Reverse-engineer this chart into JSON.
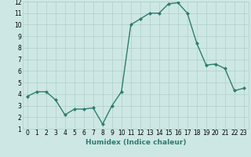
{
  "x": [
    0,
    1,
    2,
    3,
    4,
    5,
    6,
    7,
    8,
    9,
    10,
    11,
    12,
    13,
    14,
    15,
    16,
    17,
    18,
    19,
    20,
    21,
    22,
    23
  ],
  "y": [
    3.8,
    4.2,
    4.2,
    3.5,
    2.2,
    2.7,
    2.7,
    2.8,
    1.4,
    3.0,
    4.2,
    10.0,
    10.5,
    11.0,
    11.0,
    11.8,
    11.9,
    11.0,
    8.4,
    6.5,
    6.6,
    6.2,
    4.3,
    4.5
  ],
  "line_color": "#2e7d6e",
  "marker": "D",
  "marker_size": 2.0,
  "bg_color": "#cde8e4",
  "grid_color": "#b0cfca",
  "xlabel": "Humidex (Indice chaleur)",
  "xlim": [
    -0.5,
    23.5
  ],
  "ylim": [
    1,
    12
  ],
  "yticks": [
    1,
    2,
    3,
    4,
    5,
    6,
    7,
    8,
    9,
    10,
    11,
    12
  ],
  "xticks": [
    0,
    1,
    2,
    3,
    4,
    5,
    6,
    7,
    8,
    9,
    10,
    11,
    12,
    13,
    14,
    15,
    16,
    17,
    18,
    19,
    20,
    21,
    22,
    23
  ],
  "xlabel_fontsize": 6.5,
  "tick_fontsize": 5.5,
  "line_width": 1.0,
  "bottom_bar_color": "#3a7a72"
}
